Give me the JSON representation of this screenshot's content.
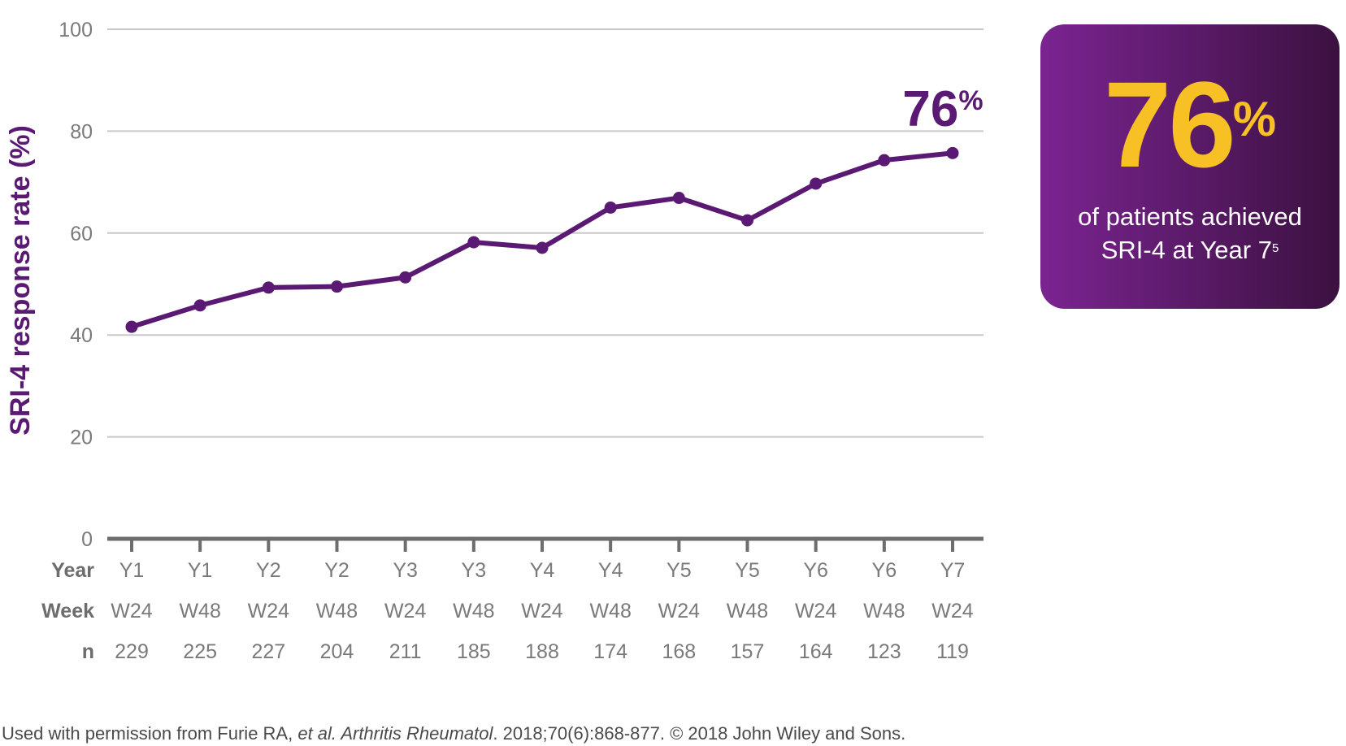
{
  "colors": {
    "series": "#5a1a73",
    "grid": "#c8c8c8",
    "axis": "#6d6d6d",
    "callout_start": "#7b2491",
    "callout_end": "#3b1140",
    "callout_number": "#f7c125"
  },
  "chart_data": {
    "type": "line",
    "ylabel": "SRI-4 response rate (%)",
    "ylim": [
      0,
      100
    ],
    "yticks": [
      0,
      20,
      40,
      60,
      80,
      100
    ],
    "grid": true,
    "rows": [
      {
        "header": "Year",
        "values": [
          "Y1",
          "Y1",
          "Y2",
          "Y2",
          "Y3",
          "Y3",
          "Y4",
          "Y4",
          "Y5",
          "Y5",
          "Y6",
          "Y6",
          "Y7"
        ]
      },
      {
        "header": "Week",
        "values": [
          "W24",
          "W48",
          "W24",
          "W48",
          "W24",
          "W48",
          "W24",
          "W48",
          "W24",
          "W48",
          "W24",
          "W48",
          "W24"
        ]
      },
      {
        "header": "n",
        "values": [
          "229",
          "225",
          "227",
          "204",
          "211",
          "185",
          "188",
          "174",
          "168",
          "157",
          "164",
          "123",
          "119"
        ]
      }
    ],
    "series": [
      {
        "values": [
          41.6,
          45.8,
          49.3,
          49.5,
          51.3,
          58.2,
          57.1,
          65.0,
          66.9,
          62.5,
          69.7,
          74.3,
          75.7
        ]
      }
    ],
    "end_label": {
      "value": "76",
      "unit": "%"
    }
  },
  "callout": {
    "number": "76",
    "unit": "%",
    "line1": "of patients achieved",
    "line2": "SRI-4 at Year 7",
    "footnote": "5"
  },
  "citation": {
    "part1": "Used with permission from Furie RA, ",
    "part2": "et al. Arthritis Rheumatol",
    "part3": ". 2018;70(6):868-877. © 2018 John Wiley and Sons."
  }
}
